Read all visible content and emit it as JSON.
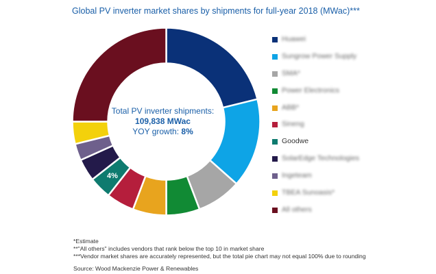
{
  "chart_data": {
    "type": "pie",
    "style": "donut",
    "title": "Global PV inverter market shares by shipments for full-year 2018 (MWac)***",
    "center": {
      "line1": "Total PV inverter shipments:",
      "line2": "109,838 MWac",
      "line3_label": "YOY growth: ",
      "line3_value": "8%"
    },
    "categories": [
      "Huawei",
      "Sungrow Power Supply",
      "SMA*",
      "Power Electronics",
      "ABB*",
      "Sineng",
      "Goodwe",
      "SolarEdge Technologies",
      "Ingeteam",
      "TBEA Sunoasis*",
      "All others"
    ],
    "label_blurred": [
      true,
      true,
      true,
      true,
      true,
      true,
      false,
      true,
      true,
      true,
      true
    ],
    "values": [
      22,
      16,
      8,
      6,
      6,
      5,
      4,
      4,
      3,
      4,
      26
    ],
    "colors": [
      "#0a3178",
      "#0ea4e6",
      "#a6a6a6",
      "#118a34",
      "#e8a41e",
      "#b51e3c",
      "#0e7b6f",
      "#231a4a",
      "#6e608c",
      "#f3d10c",
      "#6a0f1f"
    ],
    "data_labels": [
      {
        "index": 6,
        "text": "4%"
      }
    ]
  },
  "footer": {
    "note1": "*Estimate",
    "note2": "**\"All others\" includes vendors that rank below the top 10 in market share",
    "note3": "***Vendor market shares are accurately represented, but the total pie chart may not equal 100% due to rounding",
    "source": "Source: Wood Mackenzie Power & Renewables"
  }
}
